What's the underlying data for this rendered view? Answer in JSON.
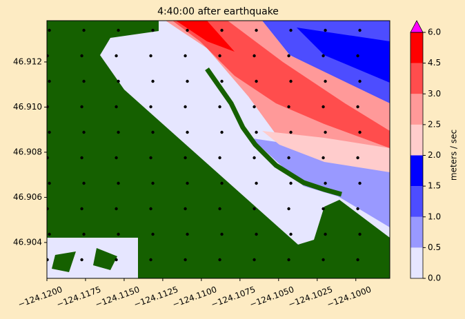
{
  "chart_data": {
    "type": "contour",
    "title": "4:40:00 after earthquake",
    "xlim": [
      -124.12,
      -124.0978
    ],
    "ylim": [
      46.90241,
      46.91383
    ],
    "xticks": [
      {
        "value": -124.12,
        "label": "−124.1200"
      },
      {
        "value": -124.1175,
        "label": "−124.1175"
      },
      {
        "value": -124.115,
        "label": "−124.1150"
      },
      {
        "value": -124.1125,
        "label": "−124.1125"
      },
      {
        "value": -124.11,
        "label": "−124.1100"
      },
      {
        "value": -124.1075,
        "label": "−124.1075"
      },
      {
        "value": -124.105,
        "label": "−124.1050"
      },
      {
        "value": -124.1025,
        "label": "−124.1025"
      },
      {
        "value": -124.1,
        "label": "−124.1000"
      }
    ],
    "yticks": [
      46.904,
      46.906,
      46.908,
      {
        "value": 46.91,
        "label": "46.910"
      },
      46.912
    ],
    "colorbar": {
      "label": "meters / sec",
      "ticks": [
        {
          "value": 0,
          "label": "0.0"
        },
        0.5,
        {
          "value": 1,
          "label": "1.0"
        },
        1.5,
        {
          "value": 2,
          "label": "2.0"
        },
        2.5,
        {
          "value": 3,
          "label": "3.0"
        },
        4.5,
        {
          "value": 6,
          "label": "6.0"
        }
      ],
      "colors": [
        "#e6e6ff",
        "#9999ff",
        "#4d4dff",
        "#0000ff",
        "#ffcccc",
        "#ff9999",
        "#ff4d4d",
        "#ff0000"
      ],
      "extend_color": "#ff00ff"
    }
  }
}
